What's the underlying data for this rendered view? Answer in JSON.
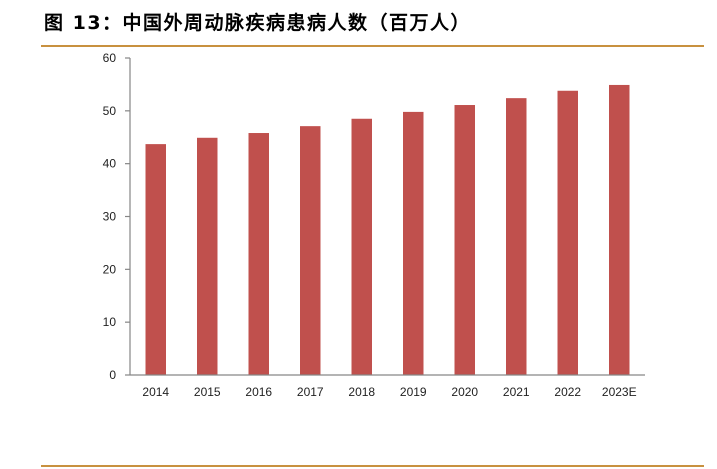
{
  "figure": {
    "title": "图 13：中国外周动脉疾病患病人数（百万人）",
    "rule_color": "#c8913f",
    "bar_color": "#c0504d",
    "axis_color": "#868686"
  },
  "chart_data": {
    "type": "bar",
    "title": "中国外周动脉疾病患病人数（百万人）",
    "categories": [
      "2014",
      "2015",
      "2016",
      "2017",
      "2018",
      "2019",
      "2020",
      "2021",
      "2022",
      "2023E"
    ],
    "series": [
      {
        "name": "患病人数（百万人）",
        "values": [
          43.7,
          44.9,
          45.8,
          47.1,
          48.5,
          49.8,
          51.1,
          52.4,
          53.8,
          54.9
        ]
      }
    ],
    "values": [
      43.7,
      44.9,
      45.8,
      47.1,
      48.5,
      49.8,
      51.1,
      52.4,
      53.8,
      54.9
    ],
    "xlabel": "",
    "ylabel": "",
    "ylim": [
      0,
      60
    ],
    "yticks": [
      0,
      10,
      20,
      30,
      40,
      50,
      60
    ],
    "grid": false,
    "legend": "none"
  }
}
